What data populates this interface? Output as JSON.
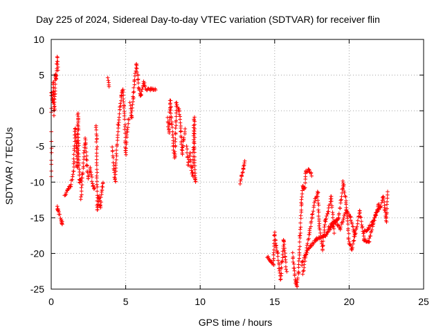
{
  "chart_data": {
    "type": "scatter",
    "title": "Day 225 of 2024, Sidereal Day-to-day VTEC variation (SDTVAR) for receiver flin",
    "xlabel": "GPS time / hours",
    "ylabel": "SDTVAR / TECUs",
    "xlim": [
      0,
      25
    ],
    "ylim": [
      -25,
      10
    ],
    "xticks": [
      0,
      5,
      10,
      15,
      20,
      25
    ],
    "yticks": [
      -25,
      -20,
      -15,
      -10,
      -5,
      0,
      5,
      10
    ],
    "grid": true,
    "marker": "+",
    "marker_color": "#ff0000",
    "series": [
      {
        "name": "SDTVAR",
        "segments": [
          [
            [
              0.0,
              -11.0
            ],
            [
              0.0,
              3.0
            ],
            [
              0.1,
              1.0
            ],
            [
              0.15,
              4.0
            ],
            [
              0.2,
              -0.5
            ],
            [
              0.25,
              2.5
            ],
            [
              0.3,
              5.0
            ],
            [
              0.35,
              4.5
            ],
            [
              0.4,
              7.4
            ],
            [
              0.45,
              5.5
            ]
          ],
          [
            [
              0.4,
              -13.5
            ],
            [
              0.45,
              -14.0
            ],
            [
              0.7,
              -15.4
            ],
            [
              0.75,
              -16.0
            ]
          ],
          [
            [
              0.9,
              -12.0
            ],
            [
              1.1,
              -11.0
            ],
            [
              1.3,
              -10.5
            ],
            [
              1.5,
              -8.5
            ],
            [
              1.6,
              -2.5
            ],
            [
              1.7,
              -5.0
            ],
            [
              1.75,
              -8.0
            ],
            [
              1.8,
              -0.5
            ],
            [
              1.9,
              -10.0
            ],
            [
              2.0,
              -9.5
            ]
          ],
          [
            [
              2.0,
              -12.5
            ],
            [
              2.1,
              -9.0
            ],
            [
              2.2,
              -6.0
            ],
            [
              2.3,
              -4.0
            ],
            [
              2.4,
              -7.5
            ],
            [
              2.5,
              -9.5
            ],
            [
              2.6,
              -8.0
            ],
            [
              2.8,
              -10.5
            ],
            [
              2.9,
              -11.0
            ]
          ],
          [
            [
              3.0,
              -2.0
            ],
            [
              3.05,
              -4.0
            ],
            [
              3.1,
              -14.0
            ],
            [
              3.2,
              -12.0
            ],
            [
              3.3,
              -13.5
            ],
            [
              3.4,
              -11.0
            ],
            [
              3.5,
              -10.0
            ]
          ],
          [
            [
              3.8,
              4.5
            ],
            [
              3.9,
              3.5
            ]
          ],
          [
            [
              4.1,
              -5.0
            ],
            [
              4.2,
              -8.0
            ],
            [
              4.3,
              -10.0
            ],
            [
              4.4,
              -5.0
            ],
            [
              4.5,
              -2.0
            ],
            [
              4.6,
              0.0
            ],
            [
              4.7,
              2.0
            ],
            [
              4.8,
              3.0
            ],
            [
              4.9,
              0.5
            ],
            [
              5.0,
              -6.0
            ],
            [
              5.1,
              -3.0
            ],
            [
              5.2,
              -1.0
            ]
          ],
          [
            [
              5.3,
              1.0
            ],
            [
              5.4,
              -1.0
            ],
            [
              5.5,
              2.0
            ],
            [
              5.6,
              4.0
            ],
            [
              5.7,
              6.6
            ],
            [
              5.8,
              5.0
            ],
            [
              5.9,
              3.0
            ],
            [
              6.0,
              2.0
            ],
            [
              6.2,
              4.0
            ],
            [
              6.4,
              3.0
            ],
            [
              7.0,
              3.0
            ]
          ],
          [
            [
              7.8,
              -1.0
            ],
            [
              7.9,
              -3.0
            ],
            [
              8.0,
              1.5
            ],
            [
              8.1,
              -2.0
            ],
            [
              8.2,
              -5.0
            ],
            [
              8.3,
              -6.5
            ],
            [
              8.4,
              1.0
            ],
            [
              8.6,
              0.0
            ],
            [
              8.7,
              -3.0
            ],
            [
              8.8,
              -6.0
            ],
            [
              8.9,
              -4.0
            ],
            [
              9.0,
              -2.5
            ]
          ],
          [
            [
              9.1,
              -5.0
            ],
            [
              9.2,
              -7.5
            ],
            [
              9.3,
              -6.0
            ],
            [
              9.4,
              -8.0
            ],
            [
              9.5,
              -9.0
            ],
            [
              9.6,
              -1.0
            ],
            [
              9.65,
              -9.5
            ],
            [
              9.7,
              -10.0
            ]
          ],
          [
            [
              12.7,
              -10.2
            ],
            [
              12.8,
              -9.0
            ],
            [
              12.9,
              -8.0
            ],
            [
              13.0,
              -7.0
            ]
          ],
          [
            [
              14.5,
              -20.5
            ],
            [
              14.7,
              -21.0
            ],
            [
              14.9,
              -21.5
            ],
            [
              15.0,
              -17.2
            ],
            [
              15.1,
              -19.0
            ],
            [
              15.2,
              -20.0
            ],
            [
              15.3,
              -22.0
            ],
            [
              15.4,
              -23.5
            ],
            [
              15.5,
              -21.0
            ],
            [
              15.6,
              -18.0
            ],
            [
              15.7,
              -20.5
            ],
            [
              15.8,
              -22.5
            ]
          ],
          [
            [
              16.2,
              -20.0
            ],
            [
              16.3,
              -22.0
            ],
            [
              16.4,
              -24.0
            ],
            [
              16.5,
              -24.5
            ],
            [
              16.6,
              -22.5
            ],
            [
              16.7,
              -17.5
            ],
            [
              16.8,
              -13.0
            ],
            [
              16.9,
              -10.5
            ],
            [
              17.0,
              -11.0
            ],
            [
              17.1,
              -8.5
            ],
            [
              17.3,
              -8.3
            ],
            [
              17.5,
              -9.0
            ]
          ],
          [
            [
              16.9,
              -23.0
            ],
            [
              17.1,
              -20.0
            ],
            [
              17.3,
              -17.5
            ],
            [
              17.5,
              -15.0
            ],
            [
              17.7,
              -12.5
            ],
            [
              17.9,
              -11.5
            ],
            [
              18.0,
              -16.0
            ],
            [
              18.2,
              -19.5
            ],
            [
              18.4,
              -15.5
            ],
            [
              18.6,
              -14.0
            ],
            [
              18.8,
              -12.0
            ],
            [
              19.0,
              -17.0
            ]
          ],
          [
            [
              16.8,
              -21.5
            ],
            [
              17.2,
              -19.5
            ],
            [
              17.8,
              -18.0
            ],
            [
              18.4,
              -17.5
            ],
            [
              18.9,
              -16.0
            ],
            [
              19.3,
              -15.0
            ],
            [
              19.6,
              -10.0
            ],
            [
              19.8,
              -13.0
            ],
            [
              20.0,
              -18.5
            ],
            [
              20.2,
              -19.5
            ],
            [
              20.4,
              -17.0
            ]
          ],
          [
            [
              18.6,
              -16.5
            ],
            [
              19.0,
              -15.5
            ],
            [
              19.4,
              -16.5
            ],
            [
              19.8,
              -14.0
            ],
            [
              20.1,
              -15.0
            ],
            [
              20.4,
              -17.5
            ],
            [
              20.7,
              -14.0
            ],
            [
              21.0,
              -18.0
            ],
            [
              21.3,
              -18.5
            ],
            [
              21.6,
              -16.0
            ],
            [
              21.8,
              -14.5
            ],
            [
              22.0,
              -13.0
            ]
          ],
          [
            [
              21.0,
              -17.0
            ],
            [
              21.3,
              -16.5
            ],
            [
              21.6,
              -15.5
            ],
            [
              21.9,
              -14.0
            ],
            [
              22.1,
              -13.5
            ],
            [
              22.3,
              -12.0
            ],
            [
              22.4,
              -14.0
            ],
            [
              22.5,
              -15.5
            ],
            [
              22.6,
              -11.5
            ]
          ]
        ]
      }
    ]
  }
}
